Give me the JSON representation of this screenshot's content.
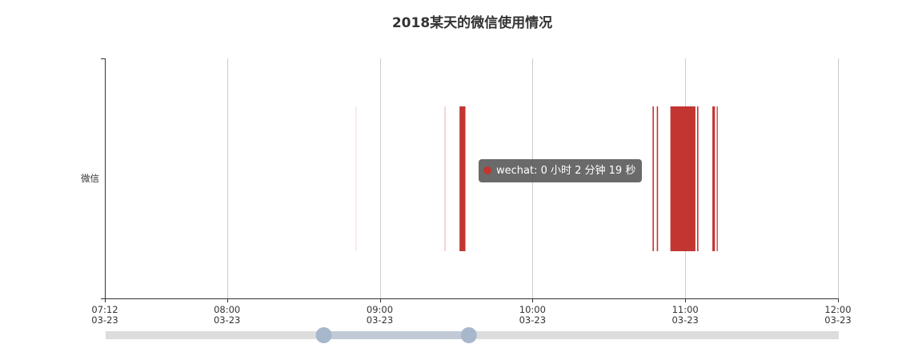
{
  "chart_data": {
    "type": "bar",
    "title": "2018某天的微信使用情况",
    "y_categories": [
      "微信"
    ],
    "x_axis": {
      "type": "time",
      "range": [
        "07:12",
        "12:00"
      ],
      "ticks": [
        {
          "time": "07:12",
          "date": "03-23"
        },
        {
          "time": "08:00",
          "date": "03-23"
        },
        {
          "time": "09:00",
          "date": "03-23"
        },
        {
          "time": "10:00",
          "date": "03-23"
        },
        {
          "time": "11:00",
          "date": "03-23"
        },
        {
          "time": "12:00",
          "date": "03-23"
        }
      ]
    },
    "grid": true,
    "series": [
      {
        "name": "wechat",
        "category": "微信",
        "intervals": [
          {
            "start": "08:50:34",
            "end": "08:50:40",
            "opacity": 0.25
          },
          {
            "start": "09:25:30",
            "end": "09:25:36",
            "opacity": 0.5
          },
          {
            "start": "09:31:20",
            "end": "09:33:39",
            "opacity": 1.0
          },
          {
            "start": "10:47:10",
            "end": "10:47:40",
            "opacity": 1.0
          },
          {
            "start": "10:48:50",
            "end": "10:49:20",
            "opacity": 1.0
          },
          {
            "start": "10:54:10",
            "end": "11:04:00",
            "opacity": 1.0
          },
          {
            "start": "11:04:40",
            "end": "11:05:10",
            "opacity": 1.0
          },
          {
            "start": "11:10:40",
            "end": "11:11:40",
            "opacity": 1.0
          },
          {
            "start": "11:12:20",
            "end": "11:12:50",
            "opacity": 0.8
          }
        ]
      }
    ],
    "data_zoom": {
      "start_time": "08:38",
      "end_time": "09:35"
    }
  },
  "tooltip": {
    "series_name": "wechat",
    "duration_text": "0 小时 2 分钟 19 秒",
    "text": "wechat: 0 小时 2 分钟 19 秒"
  },
  "colors": {
    "bar": "#c23531",
    "axis": "#333333",
    "grid": "#cccccc",
    "slider_track": "#dddddd",
    "slider_fill": "#c2cad8",
    "slider_handle": "#a7b7cc"
  }
}
